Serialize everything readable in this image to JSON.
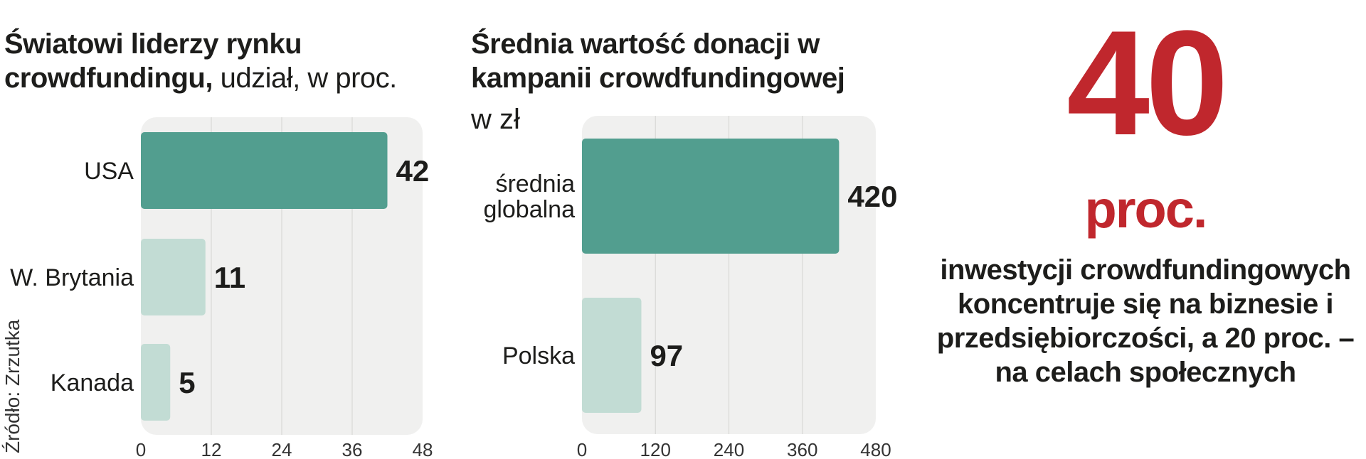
{
  "source": "Źródło: Zrzutka",
  "chart_data": [
    {
      "type": "bar",
      "orientation": "horizontal",
      "title": "Światowi liderzy rynku crowdfundingu,",
      "subtitle": "udział, w proc.",
      "categories": [
        "USA",
        "W. Brytania",
        "Kanada"
      ],
      "values": [
        42,
        11,
        5
      ],
      "value_labels": [
        "42",
        "11",
        "5"
      ],
      "xlim": [
        0,
        48
      ],
      "xticks": [
        0,
        12,
        24,
        36,
        48
      ],
      "grid": true,
      "colors": [
        "#529e8f",
        "#c2dcd4",
        "#c2dcd4"
      ],
      "panel_color": "#f0f0ef"
    },
    {
      "type": "bar",
      "orientation": "horizontal",
      "title": "Średnia wartość donacji w kampanii crowdfundingowej",
      "unit": "w zł",
      "categories": [
        "średnia\nglobalna",
        "Polska"
      ],
      "values": [
        420,
        97
      ],
      "value_labels": [
        "420",
        "97"
      ],
      "xlim": [
        0,
        480
      ],
      "xticks": [
        0,
        120,
        240,
        360,
        480
      ],
      "grid": true,
      "colors": [
        "#529e8f",
        "#c2dcd4"
      ],
      "panel_color": "#f0f0ef"
    }
  ],
  "highlight": {
    "number": "40",
    "unit": "proc.",
    "caption": "inwestycji crowdfundingowych koncentruje się na biznesie i przedsiębiorczości, a 20 proc. – na celach społecznych",
    "color": "#c0272d"
  }
}
